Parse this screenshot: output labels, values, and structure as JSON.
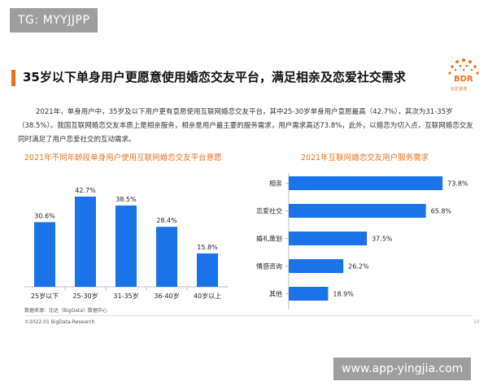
{
  "tag": "TG: MYYJJPP",
  "title": "35岁以下单身用户更愿意使用婚恋交友平台，满足相亲及恋爱社交需求",
  "logo": {
    "text": "BDR",
    "sub": "比达咨询",
    "icon": "bdr-logo-icon"
  },
  "paragraph": "2021年，单身用户中，35岁及以下用户更有意愿使用互联网婚恋交友平台，其中25-30岁单身用户意愿最高（42.7%），其次为31-35岁（38.5%）。我国互联网婚恋交友本质上是相亲服务，相亲是用户最主要的服务需求，用户需求高达73.8%，此外，以婚恋为切入点，互联网婚恋交友同时满足了用户恋爱社交的互动需求。",
  "source": "数据来源：比达（BigData）数据中心",
  "copyright": "©2022.01 BigData-Research",
  "page_number": "10",
  "watermark": "www.app-yingjia.com",
  "colors": {
    "bar": "#1a73e8",
    "accent": "#e8721e"
  },
  "chart_data": [
    {
      "type": "bar",
      "title": "2021年不同年龄段单身用户使用互联网婚恋交友平台意愿",
      "categories": [
        "25岁以下",
        "25-30岁",
        "31-35岁",
        "36-40岁",
        "40岁以上"
      ],
      "values": [
        30.6,
        42.7,
        38.5,
        28.4,
        15.8
      ],
      "value_labels": [
        "30.6%",
        "42.7%",
        "38.5%",
        "28.4%",
        "15.8%"
      ],
      "xlabel": "",
      "ylabel": "",
      "ylim": [
        0,
        50
      ],
      "grid": false
    },
    {
      "type": "bar",
      "orientation": "horizontal",
      "title": "2021年互联网婚恋交友用户服务需求",
      "categories": [
        "相亲",
        "恋爱社交",
        "婚礼策划",
        "情感咨询",
        "其他"
      ],
      "values": [
        73.8,
        65.8,
        37.5,
        26.2,
        18.9
      ],
      "value_labels": [
        "73.8%",
        "65.8%",
        "37.5%",
        "26.2%",
        "18.9%"
      ],
      "xlabel": "",
      "ylabel": "",
      "xlim": [
        0,
        80
      ],
      "grid": false
    }
  ]
}
